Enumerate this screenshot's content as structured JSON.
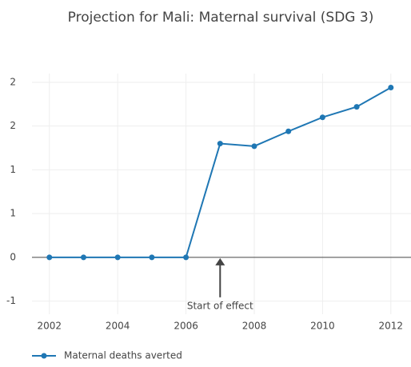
{
  "chart_data": {
    "type": "line",
    "title": "Projection for Mali: Maternal survival (SDG 3)",
    "x": [
      2002,
      2003,
      2004,
      2005,
      2006,
      2007,
      2008,
      2009,
      2010,
      2011,
      2012
    ],
    "series": [
      {
        "name": "Maternal deaths averted",
        "color": "#1f77b4",
        "values": [
          0,
          0,
          0,
          0,
          0,
          1.3,
          1.27,
          1.44,
          1.6,
          1.72,
          1.94
        ]
      }
    ],
    "xlim": [
      2001.49,
      2012.59
    ],
    "xticks": [
      2002,
      2004,
      2006,
      2008,
      2010,
      2012
    ],
    "ylim": [
      -0.65,
      2.1
    ],
    "yticks": [
      {
        "value": -0.5,
        "label": "-1"
      },
      0,
      {
        "value": 0.5,
        "label": "1"
      },
      1,
      {
        "value": 1.5,
        "label": "2"
      },
      2
    ],
    "grid": true,
    "legend": "bottom-left",
    "annotations": [
      {
        "text": "Start of effect",
        "x": 2007,
        "y": 0
      }
    ]
  }
}
